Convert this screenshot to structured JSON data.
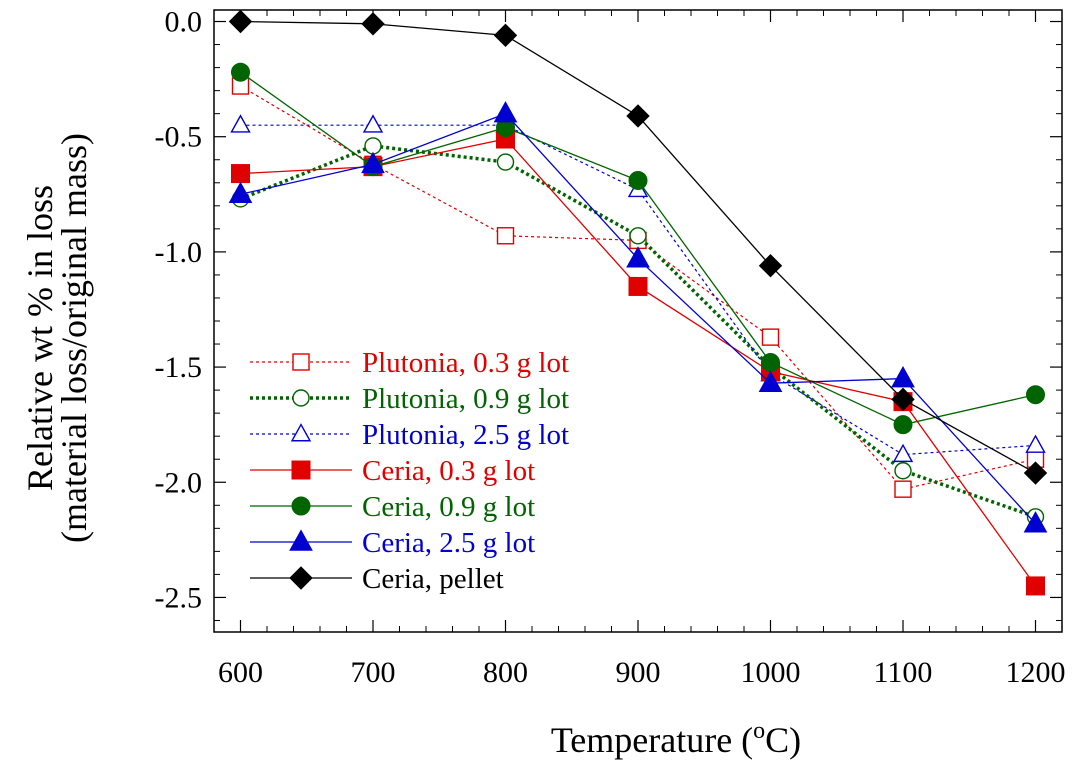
{
  "chart_data": {
    "type": "line",
    "xlabel": "Temperature (",
    "xlabel_sup": "o",
    "xlabel_end": "C)",
    "ylabel_line1": "Relative wt  %  in loss",
    "ylabel_line2": "(material loss/original mass)",
    "xlim": [
      580,
      1220
    ],
    "ylim": [
      -2.65,
      0.05
    ],
    "x_ticks": [
      600,
      700,
      800,
      900,
      1000,
      1100,
      1200
    ],
    "x_tick_labels": [
      "600",
      "700",
      "800",
      "900",
      "1000",
      "1100",
      "1200"
    ],
    "y_ticks": [
      0.0,
      -0.5,
      -1.0,
      -1.5,
      -2.0,
      -2.5
    ],
    "y_tick_labels": [
      "0.0",
      "-0.5",
      "-1.0",
      "-1.5",
      "-2.0",
      "-2.5"
    ],
    "legend_position": "left-center",
    "x": [
      600,
      700,
      800,
      900,
      1000,
      1100,
      1200
    ],
    "series": [
      {
        "name": "Plutonia, 0.3 g lot",
        "color": "#e00000",
        "marker": "square-open",
        "line": "dotted-thin",
        "values": [
          -0.28,
          -0.62,
          -0.93,
          -0.95,
          -1.37,
          -2.03,
          -1.9
        ]
      },
      {
        "name": "Plutonia, 0.9 g lot",
        "color": "#006400",
        "marker": "circle-open",
        "line": "dotted-thick",
        "values": [
          -0.77,
          -0.54,
          -0.61,
          -0.93,
          -1.5,
          -1.95,
          -2.15
        ]
      },
      {
        "name": "Plutonia, 2.5 g lot",
        "color": "#0000d0",
        "marker": "triangle-open",
        "line": "dotted-thin",
        "values": [
          -0.45,
          -0.45,
          -0.45,
          -0.73,
          -1.53,
          -1.88,
          -1.84
        ]
      },
      {
        "name": "Ceria, 0.3 g lot",
        "color": "#e00000",
        "marker": "square-filled",
        "line": "solid",
        "values": [
          -0.66,
          -0.63,
          -0.51,
          -1.15,
          -1.52,
          -1.65,
          -2.45
        ]
      },
      {
        "name": "Ceria, 0.9 g lot",
        "color": "#006400",
        "marker": "circle-filled",
        "line": "solid",
        "values": [
          -0.22,
          -0.63,
          -0.46,
          -0.69,
          -1.48,
          -1.75,
          -1.62
        ]
      },
      {
        "name": "Ceria, 2.5 g lot",
        "color": "#0000d0",
        "marker": "triangle-filled",
        "line": "solid",
        "values": [
          -0.75,
          -0.62,
          -0.4,
          -1.03,
          -1.57,
          -1.55,
          -2.18
        ]
      },
      {
        "name": "Ceria, pellet",
        "color": "#000000",
        "marker": "diamond-filled",
        "line": "solid",
        "values": [
          0.0,
          -0.01,
          -0.06,
          -0.41,
          -1.06,
          -1.64,
          -1.96
        ]
      }
    ]
  }
}
